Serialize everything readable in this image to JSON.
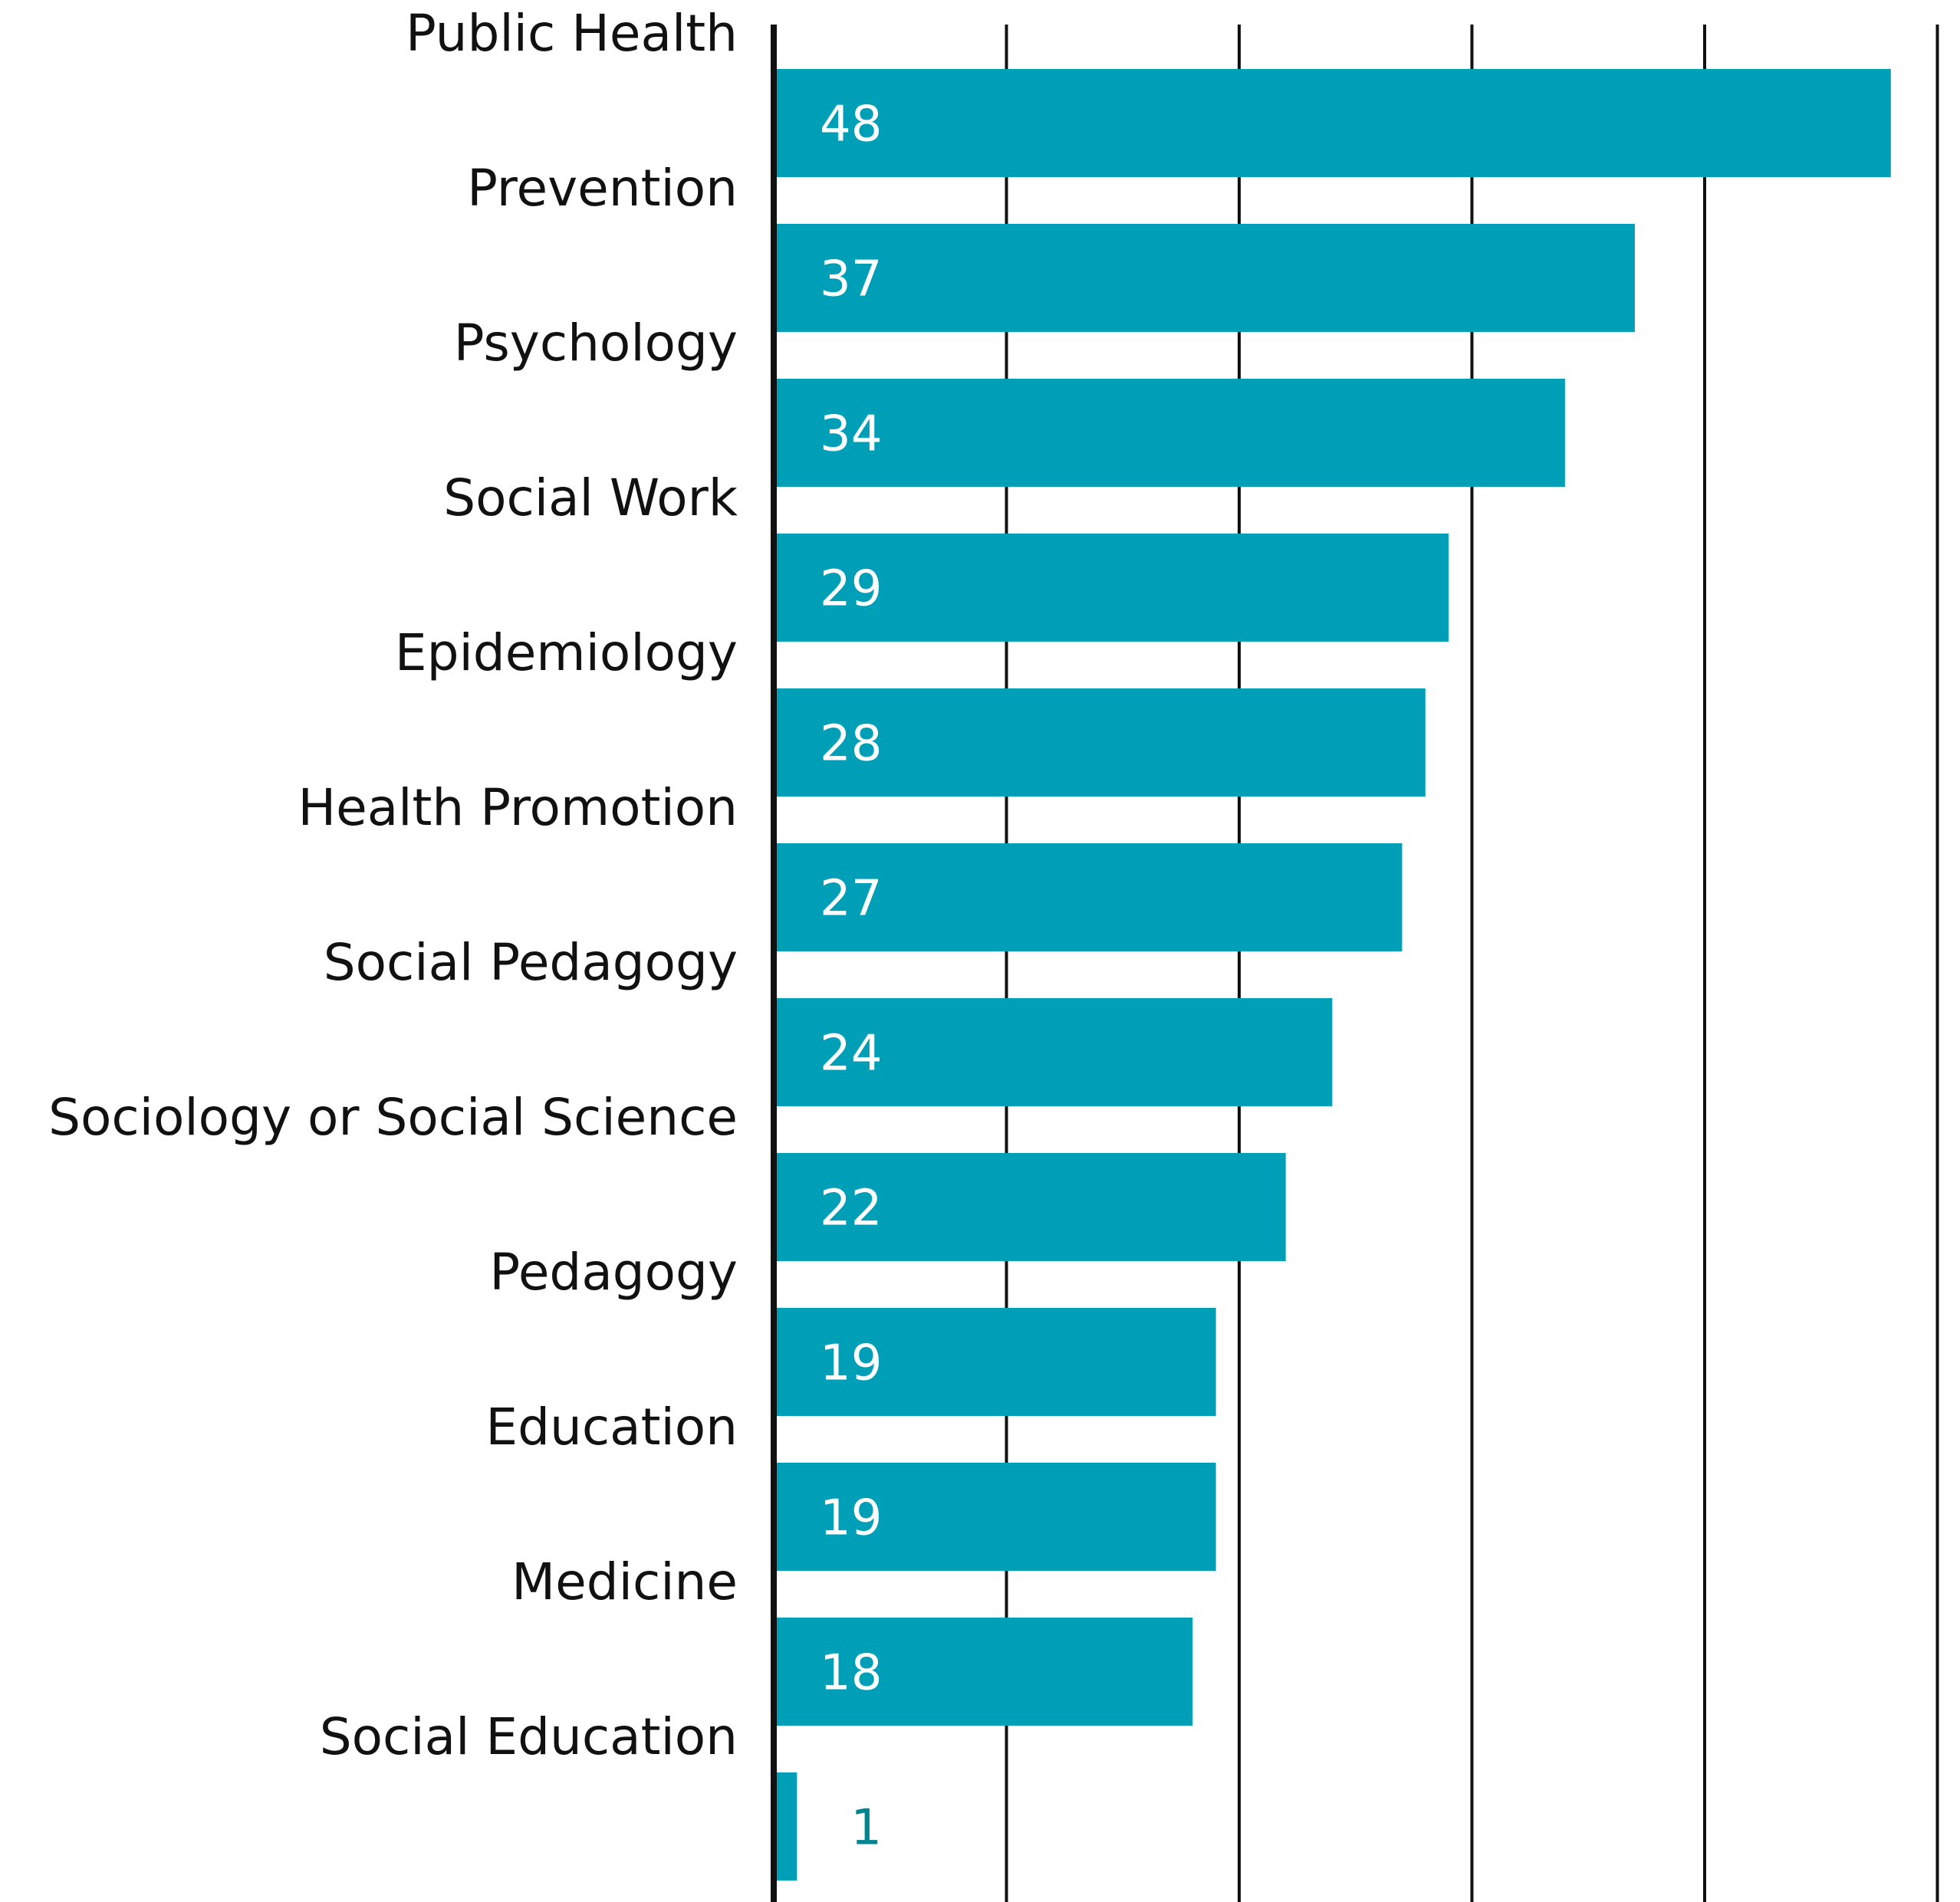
{
  "chart_data": {
    "type": "bar",
    "orientation": "horizontal",
    "categories": [
      "Public Health",
      "Prevention",
      "Psychology",
      "Social Work",
      "Epidemiology",
      "Health Promotion",
      "Social Pedagogy",
      "Sociology or Social Science",
      "Pedagogy",
      "Education",
      "Medicine",
      "Social Education"
    ],
    "values": [
      48,
      37,
      34,
      29,
      28,
      27,
      24,
      22,
      19,
      19,
      18,
      1
    ],
    "title": "",
    "xlabel": "",
    "ylabel": "",
    "xlim": [
      0,
      50
    ],
    "grid": true,
    "legend": "none",
    "colors": {
      "bar": "#009FB8",
      "label_inside": "#ffffff",
      "label_outside": "#00858F",
      "text": "#111111",
      "grid": "#111111"
    }
  }
}
